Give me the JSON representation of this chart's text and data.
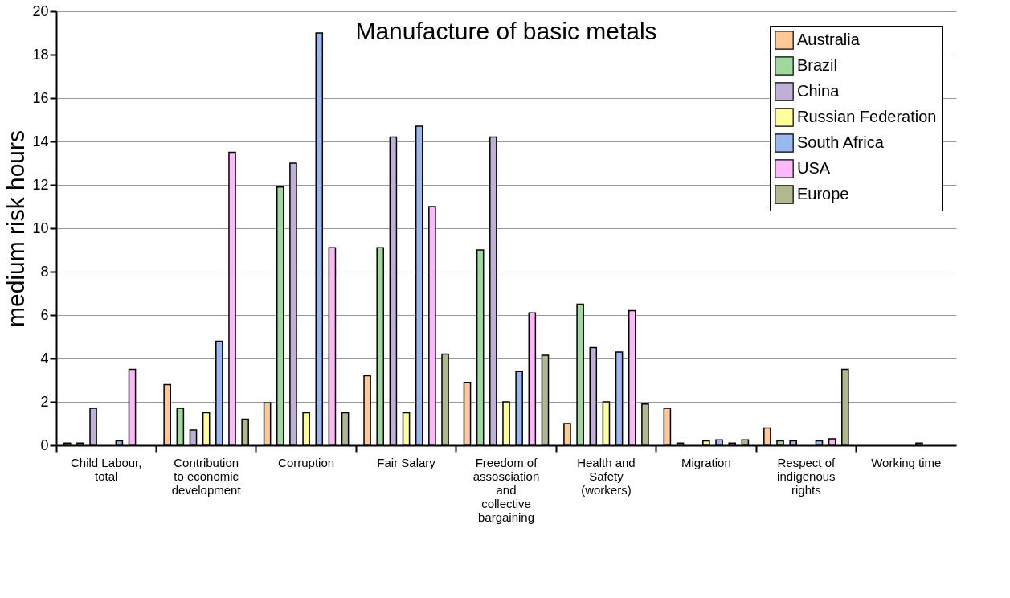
{
  "chart_data": {
    "type": "bar",
    "title": "Manufacture of basic metals",
    "ylabel": "medium risk hours",
    "categories": [
      "Child Labour, total",
      "Contribution to economic development",
      "Corruption",
      "Fair Salary",
      "Freedom of assosciation and collective bargaining",
      "Health and Safety (workers)",
      "Migration",
      "Respect of indigenous rights",
      "Working time"
    ],
    "series": [
      {
        "name": "Australia",
        "color": "#ffc896",
        "values": [
          0.1,
          2.8,
          1.95,
          3.2,
          2.9,
          1.0,
          1.7,
          0.8,
          null
        ]
      },
      {
        "name": "Brazil",
        "color": "#a0d8a0",
        "values": [
          0.1,
          1.7,
          11.9,
          9.1,
          9.0,
          6.5,
          0.1,
          0.2,
          null
        ]
      },
      {
        "name": "China",
        "color": "#c0b0d8",
        "values": [
          1.7,
          0.7,
          13.0,
          14.2,
          14.2,
          4.5,
          null,
          0.2,
          null
        ]
      },
      {
        "name": "Russian Federation",
        "color": "#ffff99",
        "values": [
          null,
          1.5,
          1.5,
          1.5,
          2.0,
          2.0,
          0.2,
          null,
          null
        ]
      },
      {
        "name": "South Africa",
        "color": "#99b8f0",
        "values": [
          0.2,
          4.8,
          19.0,
          14.7,
          3.4,
          4.3,
          0.25,
          0.2,
          0.1
        ]
      },
      {
        "name": "USA",
        "color": "#ffb8f8",
        "values": [
          3.5,
          13.5,
          9.1,
          11.0,
          6.1,
          6.2,
          0.1,
          0.3,
          null
        ]
      },
      {
        "name": "Europe",
        "color": "#b0b890",
        "values": [
          null,
          1.2,
          1.5,
          4.2,
          4.15,
          1.9,
          0.25,
          3.5,
          null
        ]
      }
    ],
    "ylim": [
      0,
      20
    ],
    "yticks": [
      0,
      2,
      4,
      6,
      8,
      10,
      12,
      14,
      16,
      18,
      20
    ],
    "grid": "y",
    "legend": "top right"
  }
}
